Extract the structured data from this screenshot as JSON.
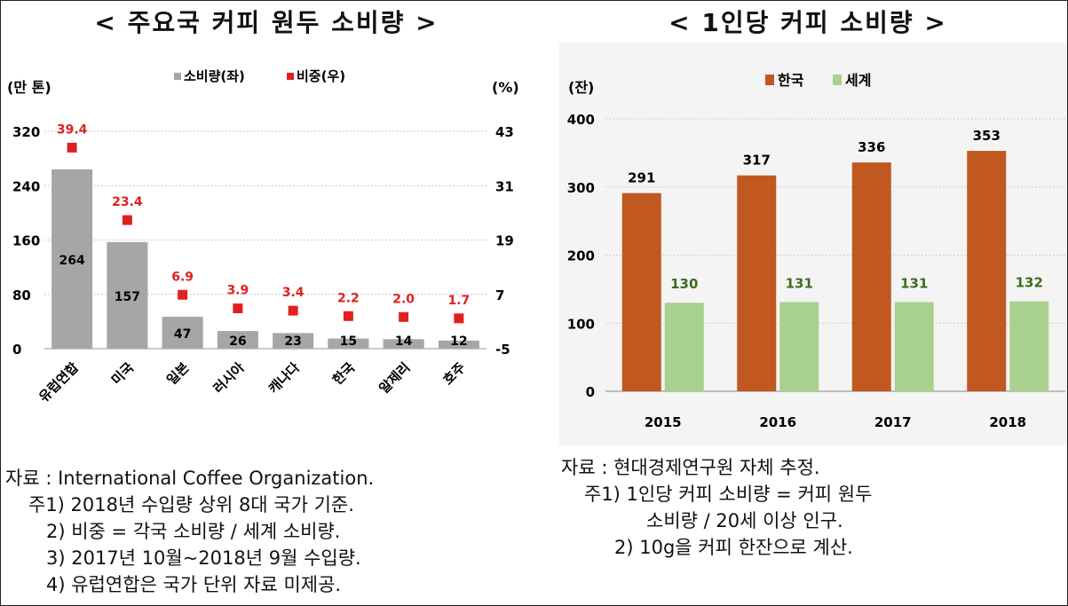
{
  "left_title": "< 주요국 커피 원두 소비량 >",
  "right_title": "< 1인당 커피 소비량 >",
  "left_notes": [
    "자료 : International Coffee Organization.",
    "주1) 2018년 수입량 상위 8대 국가 기준.",
    "2) 비중 = 각국 소비량 / 세계 소비량.",
    "3) 2017년 10월~2018년 9월 수입량.",
    "4) 유럽연합은 국가 단위 자료 미제공."
  ],
  "right_notes": [
    "자료 : 현대경제연구원 자체 추정.",
    "주1) 1인당 커피 소비량 = 커피 원두",
    "소비량 / 20세 이상 인구.",
    "2) 10g을 커피 한잔으로 계산."
  ],
  "colors": {
    "consumption_bar": "#a6a6a6",
    "share_marker": "#e02020",
    "korea_bar": "#c0581f",
    "world_bar": "#a9d18e"
  },
  "chart_data": [
    {
      "type": "bar",
      "categories": [
        "유럽연합",
        "미국",
        "일본",
        "러시아",
        "캐나다",
        "한국",
        "알제리",
        "호주"
      ],
      "series": [
        {
          "name": "소비량(좌)",
          "values": [
            264,
            157,
            47,
            26,
            23,
            15,
            14,
            12
          ],
          "axis": "left",
          "style": "bar"
        },
        {
          "name": "비중(우)",
          "values": [
            39.4,
            23.4,
            6.9,
            3.9,
            3.4,
            2.2,
            2.0,
            1.7
          ],
          "axis": "right",
          "style": "marker"
        }
      ],
      "ylabel_left": "(만 톤)",
      "ylabel_right": "(%)",
      "ylim_left": [
        0,
        320
      ],
      "yticks_left": [
        "320",
        "240",
        "160",
        "80",
        "0"
      ],
      "ylim_right": [
        -5,
        43
      ],
      "yticks_right": [
        "43",
        "31",
        "19",
        "7",
        "-5"
      ],
      "legend_position": "top-center",
      "grid": true
    },
    {
      "type": "bar",
      "categories": [
        "2015",
        "2016",
        "2017",
        "2018"
      ],
      "series": [
        {
          "name": "한국",
          "values": [
            291,
            317,
            336,
            353
          ]
        },
        {
          "name": "세계",
          "values": [
            130,
            131,
            131,
            132
          ]
        }
      ],
      "ylabel": "(잔)",
      "ylim": [
        0,
        400
      ],
      "yticks": [
        "400",
        "300",
        "200",
        "100",
        "0"
      ],
      "legend_position": "top-left",
      "grid": true
    }
  ]
}
